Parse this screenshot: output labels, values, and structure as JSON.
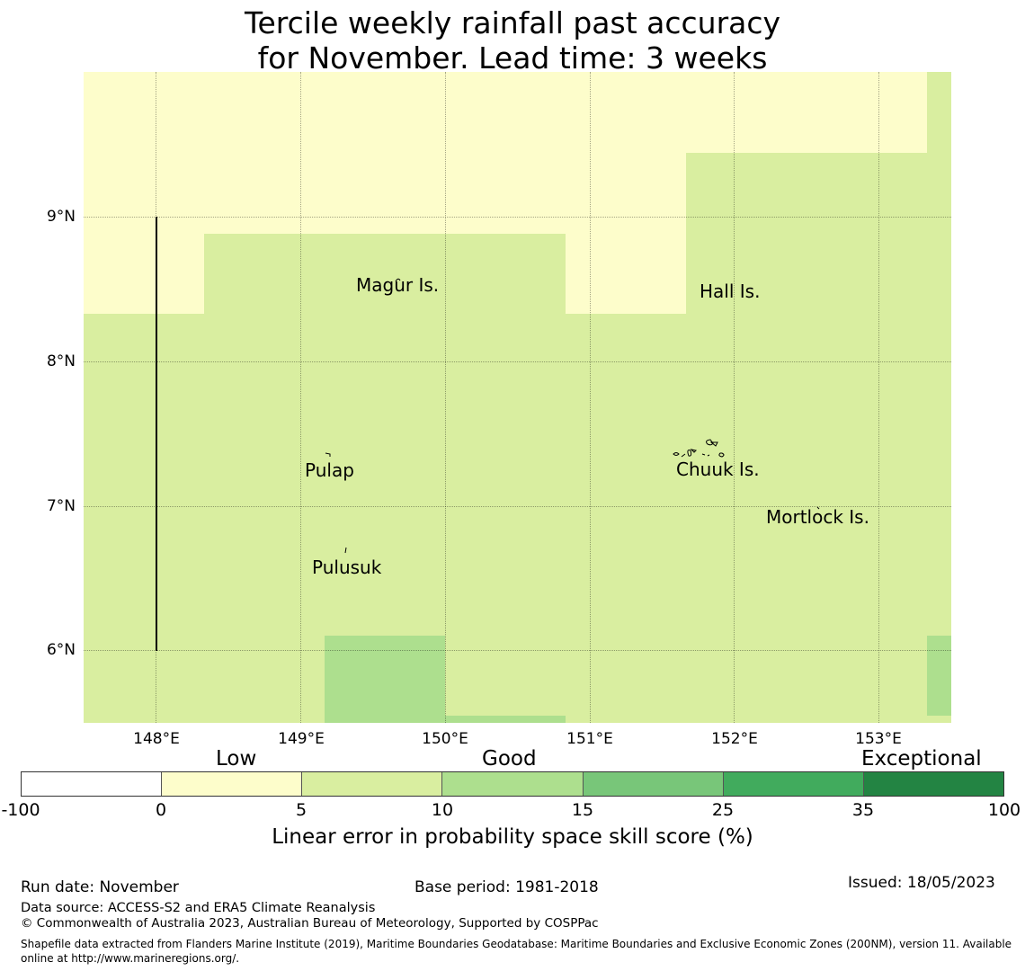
{
  "title": {
    "line1": "Tercile weekly rainfall past accuracy",
    "line2": "for November. Lead time: 3 weeks"
  },
  "map": {
    "latitude_labels": [
      "9°N",
      "8°N",
      "7°N",
      "6°N"
    ],
    "longitude_labels": [
      "148°E",
      "149°E",
      "150°E",
      "151°E",
      "152°E",
      "153°E"
    ],
    "places": [
      "Magur Is.",
      "Hall Is.",
      "Pulap",
      "Chuuk Is.",
      "Mortlock Is.",
      "Pulusuk"
    ]
  },
  "colorbar": {
    "categories": [
      "Low",
      "Good",
      "Exceptional"
    ],
    "ticks": [
      "-100",
      "0",
      "5",
      "10",
      "15",
      "25",
      "35",
      "100"
    ],
    "colors": [
      "#ffffff",
      "#fdfdcb",
      "#d9eea0",
      "#addf8e",
      "#78c679",
      "#41ab5d",
      "#238443"
    ],
    "label": "Linear error in probability space skill score (%)"
  },
  "footer": {
    "run_date": "Run date: November",
    "base_period": "Base period: 1981-2018",
    "issued": "Issued: 18/05/2023",
    "data_source": "Data source: ACCESS-S2 and ERA5 Climate Reanalysis",
    "copyright": "© Commonwealth of Australia 2023, Australian Bureau of Meteorology, Supported by COSPPac",
    "shapefile_line1": "Shapefile data extracted from Flanders Marine Institute (2019), Maritime Boundaries Geodatabase: Maritime Boundaries and Exclusive Economic Zones (200NM), version 11. Available",
    "shapefile_line2": "online at http://www.marineregions.org/."
  }
}
